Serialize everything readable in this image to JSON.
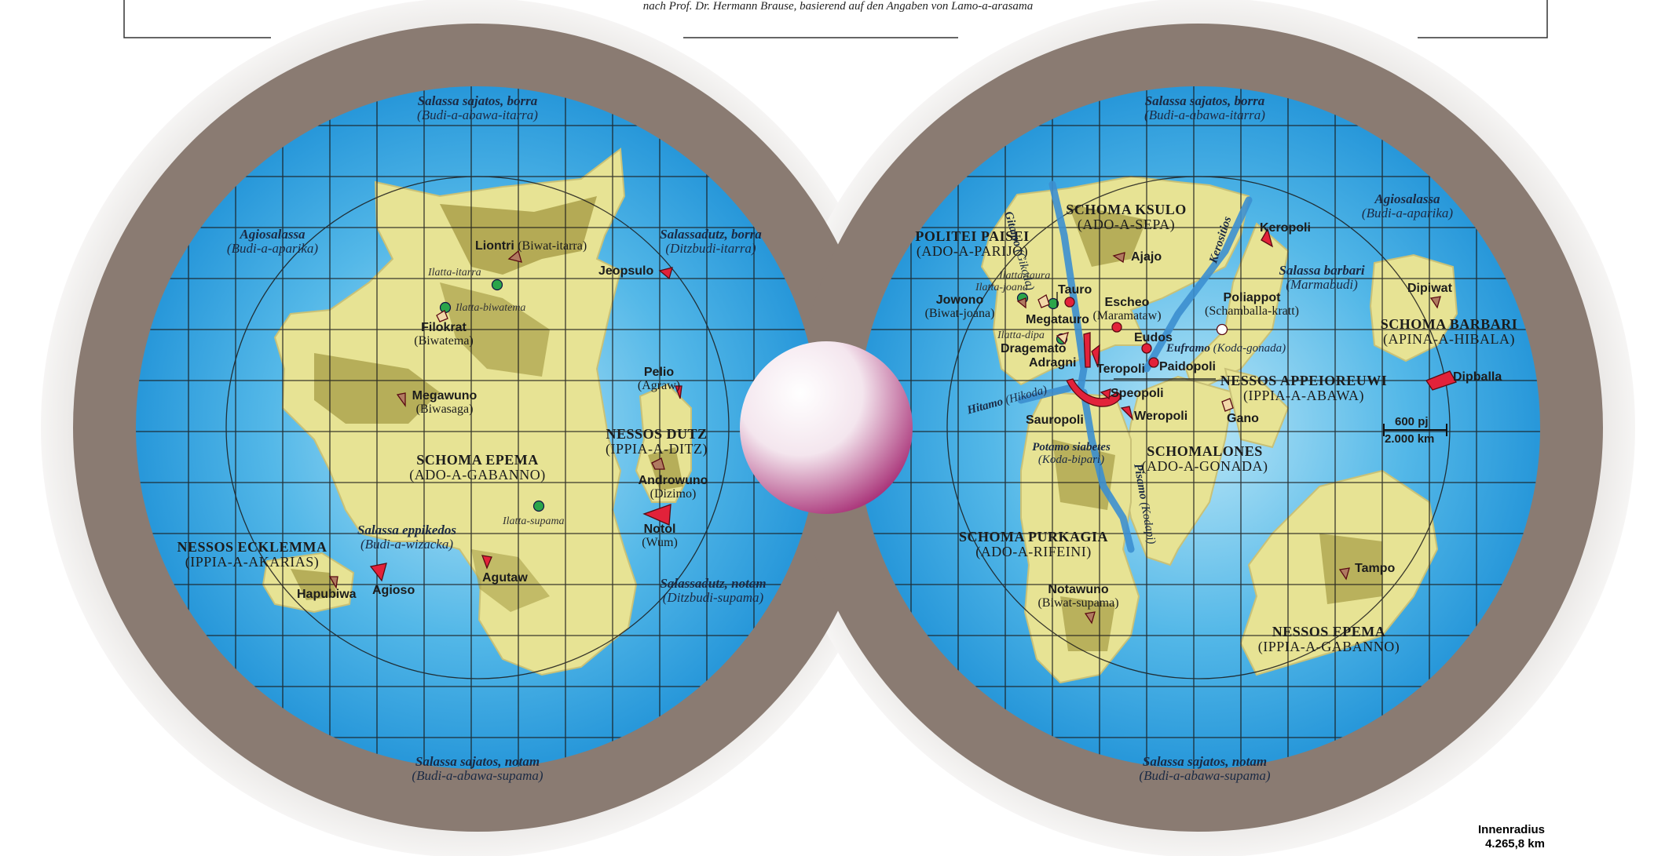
{
  "credit": "nach Prof. Dr. Hermann Brause, basierend auf den Angaben von Lamo-a-arasama",
  "colors": {
    "ocean": "#2fa4df",
    "land": "#e6e290",
    "relief": "#a8a046",
    "rim": "#8a7a70",
    "city": "#e2223a"
  },
  "west": {
    "seas": [
      {
        "name": "Salassa sajatos, borra",
        "sub": "(Budi-a-abawa-itarra)"
      },
      {
        "name": "Agiosalassa",
        "sub": "(Budi-a-aparika)"
      },
      {
        "name": "Salassadutz, borra",
        "sub": "(Ditzbudi-itarra)"
      },
      {
        "name": "Salassa eppikedos",
        "sub": "(Budi-a-wizacka)"
      },
      {
        "name": "Salassadutz, notam",
        "sub": "(Ditzbudi-supama)"
      },
      {
        "name": "Salassa sajatos, notam",
        "sub": "(Budi-a-abawa-supama)"
      }
    ],
    "regions": [
      {
        "name": "SCHOMA EPEMA",
        "sub": "(ADO-A-GABANNO)"
      },
      {
        "name": "NESSOS DUTZ",
        "sub": "(IPPIA-A-DITZ)"
      },
      {
        "name": "NESSOS ECKLEMMA",
        "sub": "(IPPIA-A-AKARIAS)"
      }
    ],
    "cities": [
      {
        "name": "Liontri",
        "sub": "(Biwat-itarra)"
      },
      {
        "name": "Jeopsulo",
        "sub": ""
      },
      {
        "name": "Filokrat",
        "sub": "(Biwatema)"
      },
      {
        "name": "Megawuno",
        "sub": "(Biwasaga)"
      },
      {
        "name": "Pelio",
        "sub": "(Agraw)"
      },
      {
        "name": "Androwuno",
        "sub": "(Dizimo)"
      },
      {
        "name": "Notol",
        "sub": "(Wum)"
      },
      {
        "name": "Agutaw",
        "sub": ""
      },
      {
        "name": "Agioso",
        "sub": ""
      },
      {
        "name": "Hapubiwa",
        "sub": ""
      }
    ],
    "lakes": [
      "Ilatta-itarra",
      "Ilatta-biwatema",
      "Ilatta-supama"
    ]
  },
  "east": {
    "seas": [
      {
        "name": "Salassa sajatos, borra",
        "sub": "(Budi-a-abawa-itarra)"
      },
      {
        "name": "Agiosalassa",
        "sub": "(Budi-a-aparika)"
      },
      {
        "name": "Salassa barbari",
        "sub": "(Marmabudi)"
      },
      {
        "name": "Salassa sajatos, notam",
        "sub": "(Budi-a-abawa-supama)"
      }
    ],
    "regions": [
      {
        "name": "SCHOMA KSULO",
        "sub": "(ADO-A-SEPA)"
      },
      {
        "name": "POLITEI PAISEI",
        "sub": "(ADO-A-PARIJO)"
      },
      {
        "name": "SCHOMA BARBARI",
        "sub": "(APINA-A-HIBALA)"
      },
      {
        "name": "NESSOS APPEIOREUWI",
        "sub": "(IPPIA-A-ABAWA)"
      },
      {
        "name": "SCHOMALONES",
        "sub": "(ADO-A-GONADA)"
      },
      {
        "name": "SCHOMA PURKAGIA",
        "sub": "(ADO-A-RIFEINI)"
      },
      {
        "name": "NESSOS EPEMA",
        "sub": "(IPPIA-A-GABANNO)"
      }
    ],
    "cities": [
      {
        "name": "Ajajo",
        "sub": ""
      },
      {
        "name": "Keropoli",
        "sub": ""
      },
      {
        "name": "Tauro",
        "sub": ""
      },
      {
        "name": "Jowono",
        "sub": "(Biwat-joana)"
      },
      {
        "name": "Escheo",
        "sub": "(Maramataw)"
      },
      {
        "name": "Poliappot",
        "sub": "(Schamballa-kratt)"
      },
      {
        "name": "Dipiwat",
        "sub": ""
      },
      {
        "name": "Megatauro",
        "sub": ""
      },
      {
        "name": "Eudos",
        "sub": ""
      },
      {
        "name": "Dragemato",
        "sub": ""
      },
      {
        "name": "Adragni",
        "sub": ""
      },
      {
        "name": "Teropoli",
        "sub": ""
      },
      {
        "name": "Paidopoli",
        "sub": ""
      },
      {
        "name": "Dipballa",
        "sub": ""
      },
      {
        "name": "Speopoli",
        "sub": ""
      },
      {
        "name": "Gano",
        "sub": ""
      },
      {
        "name": "Sauropoli",
        "sub": ""
      },
      {
        "name": "Weropoli",
        "sub": ""
      },
      {
        "name": "Tampo",
        "sub": ""
      },
      {
        "name": "Notawuno",
        "sub": "(Biwat-supama)"
      }
    ],
    "rivers": [
      {
        "name": "Gitamo",
        "sub": "(Gikoda)"
      },
      {
        "name": "Kerositios",
        "sub": ""
      },
      {
        "name": "Euframo",
        "sub": "(Koda-gonada)"
      },
      {
        "name": "Hitamo",
        "sub": "(Hikoda)"
      },
      {
        "name": "Potamo siabetes",
        "sub": "(Koda-bipari)"
      },
      {
        "name": "Pisamo",
        "sub": "(Kodapi)"
      }
    ],
    "lakes": [
      "Ilatta-taura",
      "Ilatta-joana",
      "Ilatta-dipa"
    ]
  },
  "scale": {
    "top": "600 pj",
    "bottom": "2.000 km"
  },
  "radius": {
    "label": "Innenradius",
    "value": "4.265,8 km"
  }
}
